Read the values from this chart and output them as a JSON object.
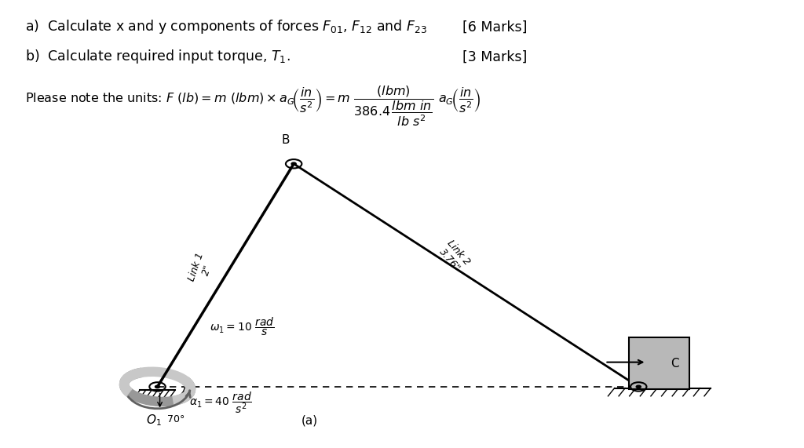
{
  "bg": "#ffffff",
  "black": "#000000",
  "gray": "#909090",
  "dgray": "#606060",
  "lgray": "#c8c8c8",
  "O1": [
    0.195,
    0.135
  ],
  "B": [
    0.365,
    0.635
  ],
  "C": [
    0.795,
    0.135
  ],
  "block_color": "#b8b8b8",
  "link1_lw": 2.5,
  "link2_lw": 2.0,
  "fs_main": 12.5,
  "fs_units": 11.5,
  "fs_label": 11,
  "fs_small": 9,
  "fs_eq": 10
}
